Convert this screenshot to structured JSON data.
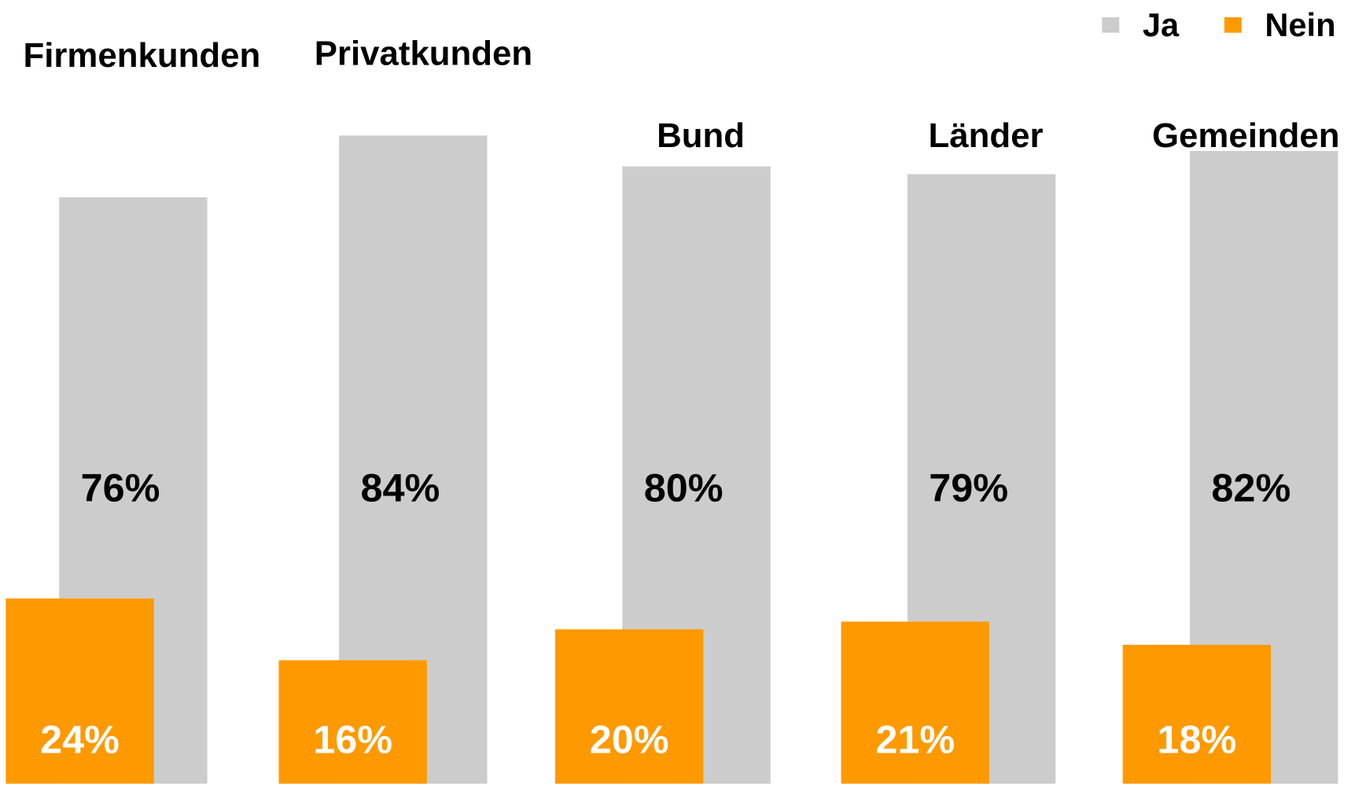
{
  "chart_data": {
    "type": "bar",
    "categories": [
      "Firmenkunden",
      "Privatkunden",
      "Bund",
      "Länder",
      "Gemeinden"
    ],
    "series": [
      {
        "name": "Ja",
        "color": "#cccccc",
        "label_color": "#000000",
        "values": [
          76,
          84,
          80,
          79,
          82
        ],
        "value_labels": [
          "76%",
          "84%",
          "80%",
          "79%",
          "82%"
        ]
      },
      {
        "name": "Nein",
        "color": "#ff9900",
        "label_color": "#ffffff",
        "values": [
          24,
          16,
          20,
          21,
          18
        ],
        "value_labels": [
          "24%",
          "16%",
          "20%",
          "21%",
          "18%"
        ]
      }
    ],
    "legend": "top-right"
  }
}
